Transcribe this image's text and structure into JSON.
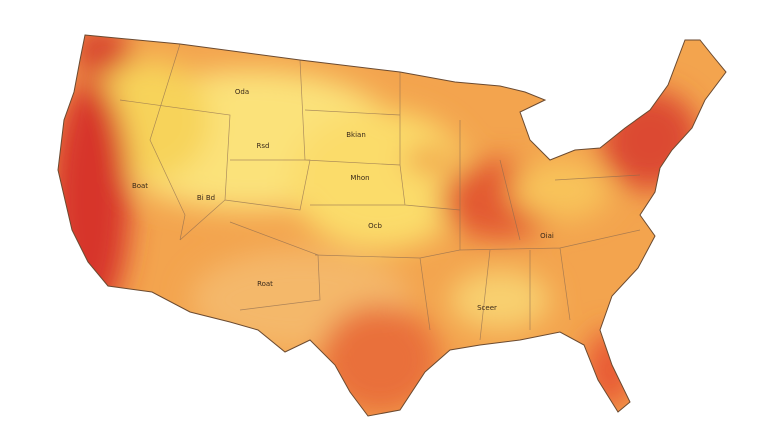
{
  "map": {
    "labels": [
      "Oda",
      "Bkian",
      "Rsd",
      "Mhon",
      "Boat",
      "Bi Bd",
      "Ocb",
      "Roat",
      "Sceer",
      "Oiai"
    ]
  }
}
